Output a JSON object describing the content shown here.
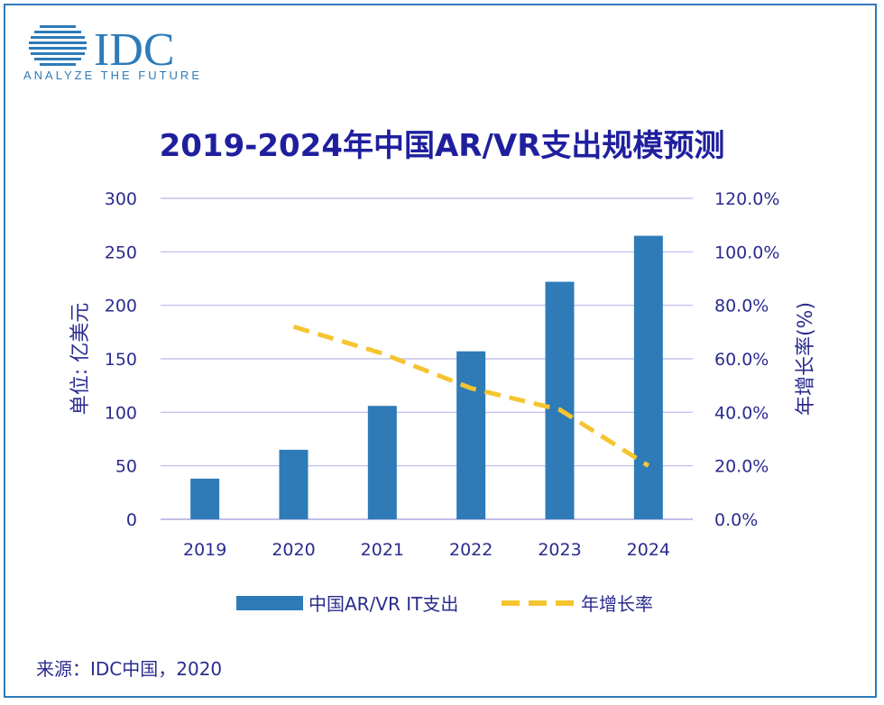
{
  "logo": {
    "brand": "IDC",
    "tagline": "ANALYZE THE FUTURE"
  },
  "colors": {
    "bar": "#2E7BB8",
    "line": "#F5C531",
    "axis_text": "#2b2b8f",
    "title": "#1f1f9e",
    "grid": "#b8b8ea"
  },
  "chart_data": {
    "type": "bar",
    "title": "2019-2024年中国AR/VR支出规模预测",
    "categories": [
      "2019",
      "2020",
      "2021",
      "2022",
      "2023",
      "2024"
    ],
    "series": [
      {
        "name": "中国AR/VR IT支出",
        "type": "bar",
        "axis": "left",
        "values": [
          38,
          65,
          106,
          157,
          222,
          265
        ]
      },
      {
        "name": "年增长率",
        "type": "line",
        "style": "dashed",
        "axis": "right",
        "values": [
          null,
          72,
          62,
          49,
          41,
          20
        ]
      }
    ],
    "ylabel": "单位: 亿美元",
    "ylim": [
      0,
      300
    ],
    "yticks": [
      "0",
      "50",
      "100",
      "150",
      "200",
      "250",
      "300"
    ],
    "y2label": "年增长率(%)",
    "y2lim": [
      0,
      120
    ],
    "y2ticks": [
      "0.0%",
      "20.0%",
      "40.0%",
      "60.0%",
      "80.0%",
      "100.0%",
      "120.0%"
    ],
    "grid": true,
    "legend": "bottom-center"
  },
  "legend": {
    "bar_label": "中国AR/VR IT支出",
    "line_label": "年增长率"
  },
  "source": "来源：IDC中国，2020"
}
